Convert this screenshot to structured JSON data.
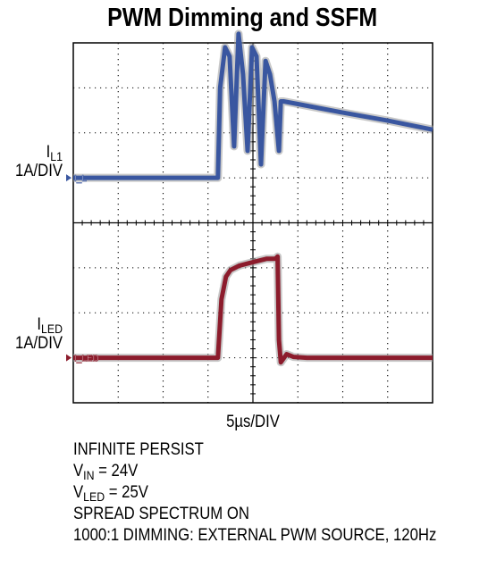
{
  "chart_data": {
    "type": "line",
    "title": "PWM Dimming and SSFM",
    "xlabel": "5µs/DIV",
    "grid": true,
    "divisions": {
      "x": 8,
      "y": 8
    },
    "channels": [
      {
        "name": "IL1",
        "label_main": "I",
        "label_sub": "L1",
        "scale": "1A/DIV",
        "marker": "I_L",
        "color": "#3a57a0",
        "baseline_div": 3,
        "units": "A",
        "x_div": [
          0,
          3.22,
          3.27,
          3.38,
          3.48,
          3.58,
          3.68,
          3.78,
          3.88,
          3.98,
          4.08,
          4.18,
          4.28,
          4.38,
          4.48,
          4.58,
          4.62,
          4.68,
          5.0,
          6.0,
          7.0,
          8.0
        ],
        "y": [
          0,
          0,
          2.0,
          2.9,
          2.7,
          0.7,
          3.2,
          2.3,
          0.6,
          2.9,
          2.7,
          0.3,
          2.6,
          2.3,
          1.7,
          0.6,
          1.7,
          1.7,
          1.64,
          1.45,
          1.27,
          1.07
        ]
      },
      {
        "name": "ILED",
        "label_main": "I",
        "label_sub": "LED",
        "scale": "1A/DIV",
        "marker": "I_LED",
        "color": "#8c1c2c",
        "baseline_div": 7,
        "units": "A",
        "x_div": [
          0,
          3.22,
          3.3,
          3.4,
          3.5,
          3.7,
          3.9,
          4.1,
          4.3,
          4.5,
          4.55,
          4.58,
          4.62,
          4.75,
          4.9,
          5.2,
          8.0
        ],
        "y": [
          0,
          0,
          1.3,
          1.8,
          1.95,
          2.05,
          2.1,
          2.15,
          2.2,
          2.2,
          2.25,
          0.4,
          -0.1,
          0.08,
          0.02,
          0.0,
          0.0
        ]
      }
    ]
  },
  "labels": {
    "ch1_main": "I",
    "ch1_sub": "L1",
    "ch1_scale": "1A/DIV",
    "ch2_main": "I",
    "ch2_sub": "LED",
    "ch2_scale": "1A/DIV"
  },
  "notes": [
    {
      "text": "INFINITE PERSIST"
    },
    {
      "main": "V",
      "sub": "IN",
      "rest": " = 24V"
    },
    {
      "main": "V",
      "sub": "LED",
      "rest": " = 25V"
    },
    {
      "text": "SPREAD SPECTRUM ON"
    },
    {
      "text": "1000:1 DIMMING: EXTERNAL PWM SOURCE, 120Hz"
    }
  ]
}
